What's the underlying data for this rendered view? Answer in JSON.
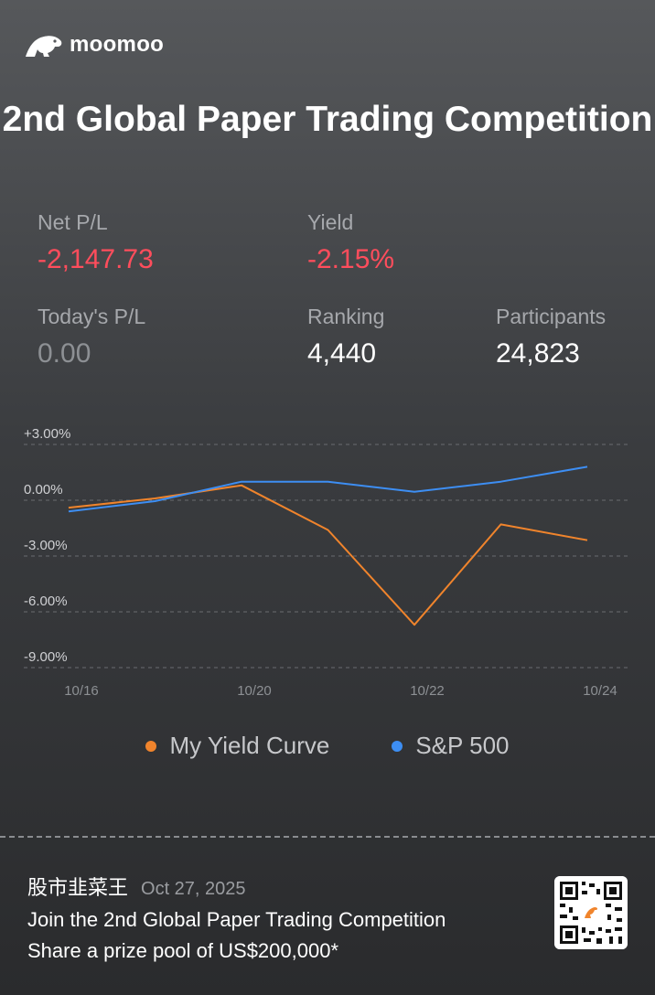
{
  "brand": {
    "name": "moomoo"
  },
  "title": "2nd Global Paper Trading Competition",
  "stats": {
    "net_pl": {
      "label": "Net P/L",
      "value": "-2,147.73"
    },
    "yield": {
      "label": "Yield",
      "value": "-2.15%"
    },
    "today_pl": {
      "label": "Today's P/L",
      "value": "0.00"
    },
    "ranking": {
      "label": "Ranking",
      "value": "4,440"
    },
    "participants": {
      "label": "Participants",
      "value": "24,823"
    }
  },
  "colors": {
    "negative": "#ff4d5c",
    "my_curve": "#f0842c",
    "sp500": "#3d8ef3"
  },
  "chart_data": {
    "type": "line",
    "x": [
      0,
      1,
      2,
      3,
      4,
      5,
      6
    ],
    "xticks": [
      {
        "at": 0,
        "label": "10/16"
      },
      {
        "at": 2,
        "label": "10/20"
      },
      {
        "at": 4,
        "label": "10/22"
      },
      {
        "at": 6,
        "label": "10/24"
      }
    ],
    "yticks": [
      3,
      0,
      -3,
      -6,
      -9
    ],
    "ytick_labels": [
      "+3.00%",
      "0.00%",
      "-3.00%",
      "-6.00%",
      "-9.00%"
    ],
    "ylim": [
      -9,
      3
    ],
    "grid": true,
    "legend": "bottom",
    "series": [
      {
        "name": "My Yield Curve",
        "color": "#f0842c",
        "values": [
          -0.4,
          0.1,
          0.8,
          -1.6,
          -6.7,
          -1.3,
          -2.15
        ]
      },
      {
        "name": "S&P 500",
        "color": "#3d8ef3",
        "values": [
          -0.6,
          -0.05,
          1.0,
          1.0,
          0.45,
          1.0,
          1.8
        ]
      }
    ]
  },
  "footer": {
    "user": "股市韭菜王",
    "date": "Oct 27, 2025",
    "line1": "Join the 2nd Global Paper Trading Competition",
    "line2": "Share a prize pool of US$200,000*"
  }
}
